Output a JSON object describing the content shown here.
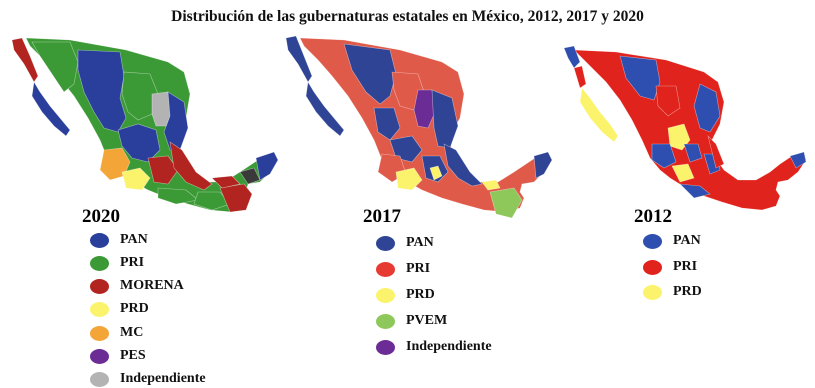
{
  "title": "Distribución de las gubernaturas estatales en México, 2012, 2017 y 2020",
  "colors": {
    "pan": "#2a3f9c",
    "pri_2020": "#3c9a36",
    "morena": "#b2241f",
    "prd": "#fbf36b",
    "mc": "#f3a538",
    "pes": "#6c2c95",
    "indep_2020": "#b3b3b3",
    "pri": "#e63a33",
    "pvem": "#8ec85a",
    "indep_2017": "#6c2c95"
  },
  "panels": [
    {
      "year": "2020",
      "legend": [
        {
          "label": "PAN",
          "color": "#2a3f9c"
        },
        {
          "label": "PRI",
          "color": "#3c9a36"
        },
        {
          "label": "MORENA",
          "color": "#b2241f"
        },
        {
          "label": "PRD",
          "color": "#fbf36b"
        },
        {
          "label": "MC",
          "color": "#f3a538"
        },
        {
          "label": "PES",
          "color": "#6c2c95"
        },
        {
          "label": "Independiente",
          "color": "#b3b3b3"
        }
      ]
    },
    {
      "year": "2017",
      "legend": [
        {
          "label": "PAN",
          "color": "#2f4495"
        },
        {
          "label": "PRI",
          "color": "#e63a33"
        },
        {
          "label": "PRD",
          "color": "#fbf36b"
        },
        {
          "label": "PVEM",
          "color": "#8ec85a"
        },
        {
          "label": "Independiente",
          "color": "#6c2c95"
        }
      ]
    },
    {
      "year": "2012",
      "legend": [
        {
          "label": "PAN",
          "color": "#2f4fb0"
        },
        {
          "label": "PRI",
          "color": "#e0231c"
        },
        {
          "label": "PRD",
          "color": "#fbf36b"
        }
      ]
    }
  ]
}
